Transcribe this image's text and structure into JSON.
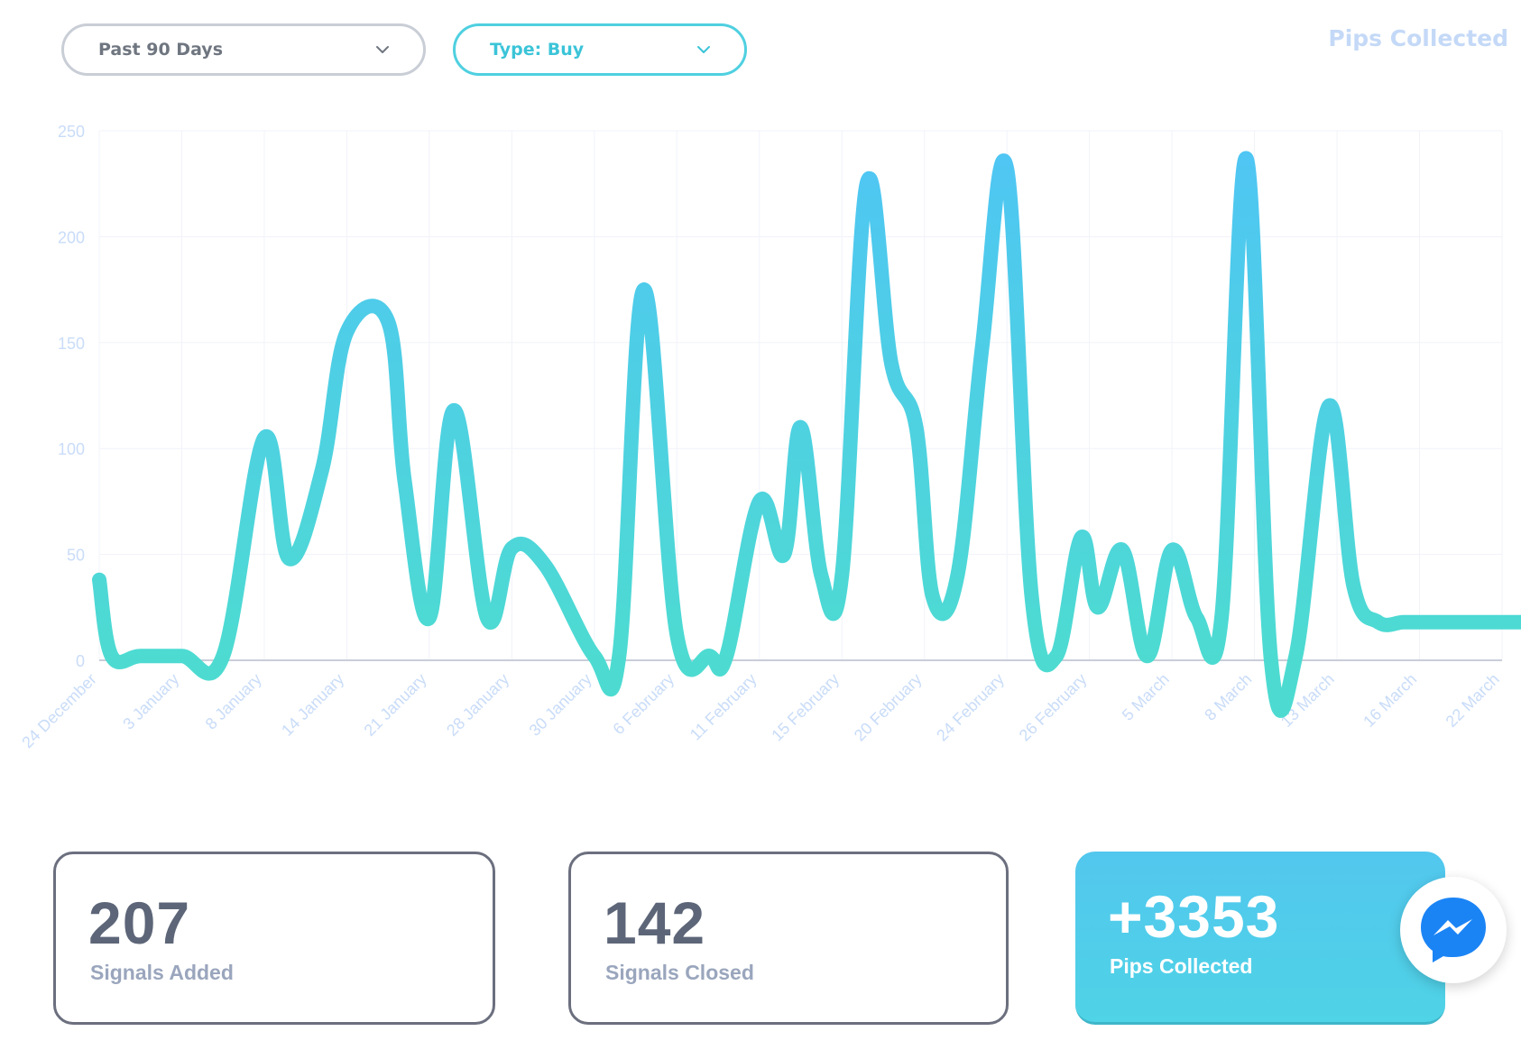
{
  "filters": {
    "range": {
      "label": "Past 90 Days"
    },
    "type": {
      "label": "Type: Buy"
    }
  },
  "chart_heading": "Pips Collected",
  "chart_data": {
    "type": "line",
    "title": "Pips Collected",
    "xlabel": "",
    "ylabel": "",
    "ylim": [
      0,
      250
    ],
    "yticks": [
      0,
      50,
      100,
      150,
      200,
      250
    ],
    "grid": true,
    "xtick_labels": [
      "24 December",
      "3 January",
      "8 January",
      "14 January",
      "21 January",
      "28 January",
      "30 January",
      "6 February",
      "11 February",
      "15 February",
      "20 February",
      "24 February",
      "26 February",
      "5 March",
      "8 March",
      "13 March",
      "16 March",
      "22 March"
    ],
    "x": [
      0,
      0.15,
      0.5,
      1,
      1.5,
      2.0,
      2.3,
      2.7,
      3.0,
      3.5,
      3.7,
      4.0,
      4.3,
      4.7,
      5.0,
      5.4,
      6.0,
      6.3,
      6.6,
      7.0,
      7.4,
      7.6,
      8.0,
      8.3,
      8.5,
      8.75,
      9.0,
      9.3,
      9.6,
      9.9,
      10.1,
      10.4,
      10.7,
      11.0,
      11.3,
      11.6,
      11.9,
      12.1,
      12.4,
      12.7,
      13.0,
      13.3,
      13.6,
      13.9,
      14.2,
      14.5,
      14.9,
      15.2,
      15.5,
      15.8,
      16.0,
      16.3,
      16.6,
      17.0,
      17.3
    ],
    "series": [
      {
        "values": [
          38,
          2,
          2,
          2,
          2,
          105,
          48,
          90,
          155,
          160,
          85,
          20,
          118,
          20,
          53,
          45,
          2,
          2,
          175,
          12,
          2,
          2,
          75,
          50,
          110,
          40,
          40,
          225,
          140,
          110,
          30,
          40,
          148,
          232,
          30,
          2,
          58,
          25,
          52,
          2,
          52,
          20,
          20,
          237,
          0,
          2,
          120,
          35,
          18,
          18,
          18,
          18,
          18,
          18,
          18
        ]
      }
    ],
    "line_gradient": [
      "#4fc5f5",
      "#4ddbd1"
    ],
    "grid_color": "#f1f3fa",
    "tick_color": "#c9dcf8"
  },
  "stats": {
    "signals_added": {
      "value": "207",
      "label": "Signals Added"
    },
    "signals_closed": {
      "value": "142",
      "label": "Signals Closed"
    },
    "pips_collected": {
      "value": "+3353",
      "label": "Pips Collected"
    }
  },
  "colors": {
    "accent": "#4fd0e0",
    "card_value": "#5d6678",
    "card_caption": "#9aa6bd",
    "messenger_blue": "#1b84f5"
  },
  "icons": [
    "chevron-down-icon",
    "messenger-icon"
  ]
}
